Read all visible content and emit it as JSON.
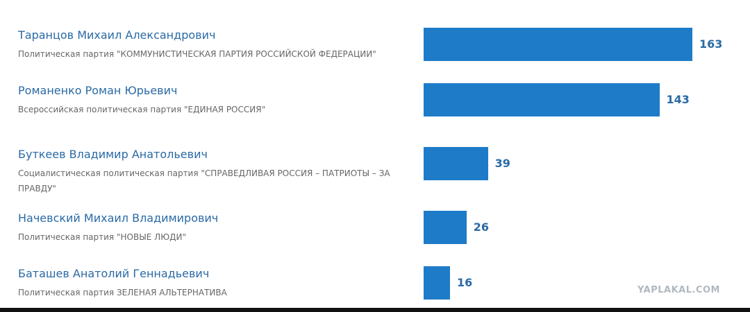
{
  "chart_data": {
    "type": "bar",
    "orientation": "horizontal",
    "categories": [
      "Таранцов Михаил Александрович",
      "Романенко Роман Юрьевич",
      "Буткеев Владимир Анатольевич",
      "Начевский Михаил Владимирович",
      "Баташев Анатолий Геннадьевич"
    ],
    "parties": [
      "Политическая партия \"КОММУНИСТИЧЕСКАЯ ПАРТИЯ РОССИЙСКОЙ ФЕДЕРАЦИИ\"",
      "Всероссийская политическая партия \"ЕДИНАЯ РОССИЯ\"",
      "Социалистическая политическая партия \"СПРАВЕДЛИВАЯ РОССИЯ – ПАТРИОТЫ – ЗА ПРАВДУ\"",
      "Политическая партия \"НОВЫЕ ЛЮДИ\"",
      "Политическая партия ЗЕЛЕНАЯ АЛЬТЕРНАТИВА"
    ],
    "values": [
      163,
      143,
      39,
      26,
      16
    ],
    "color": "#1e7bc8"
  },
  "watermark": "YAPLAKAL.COM"
}
